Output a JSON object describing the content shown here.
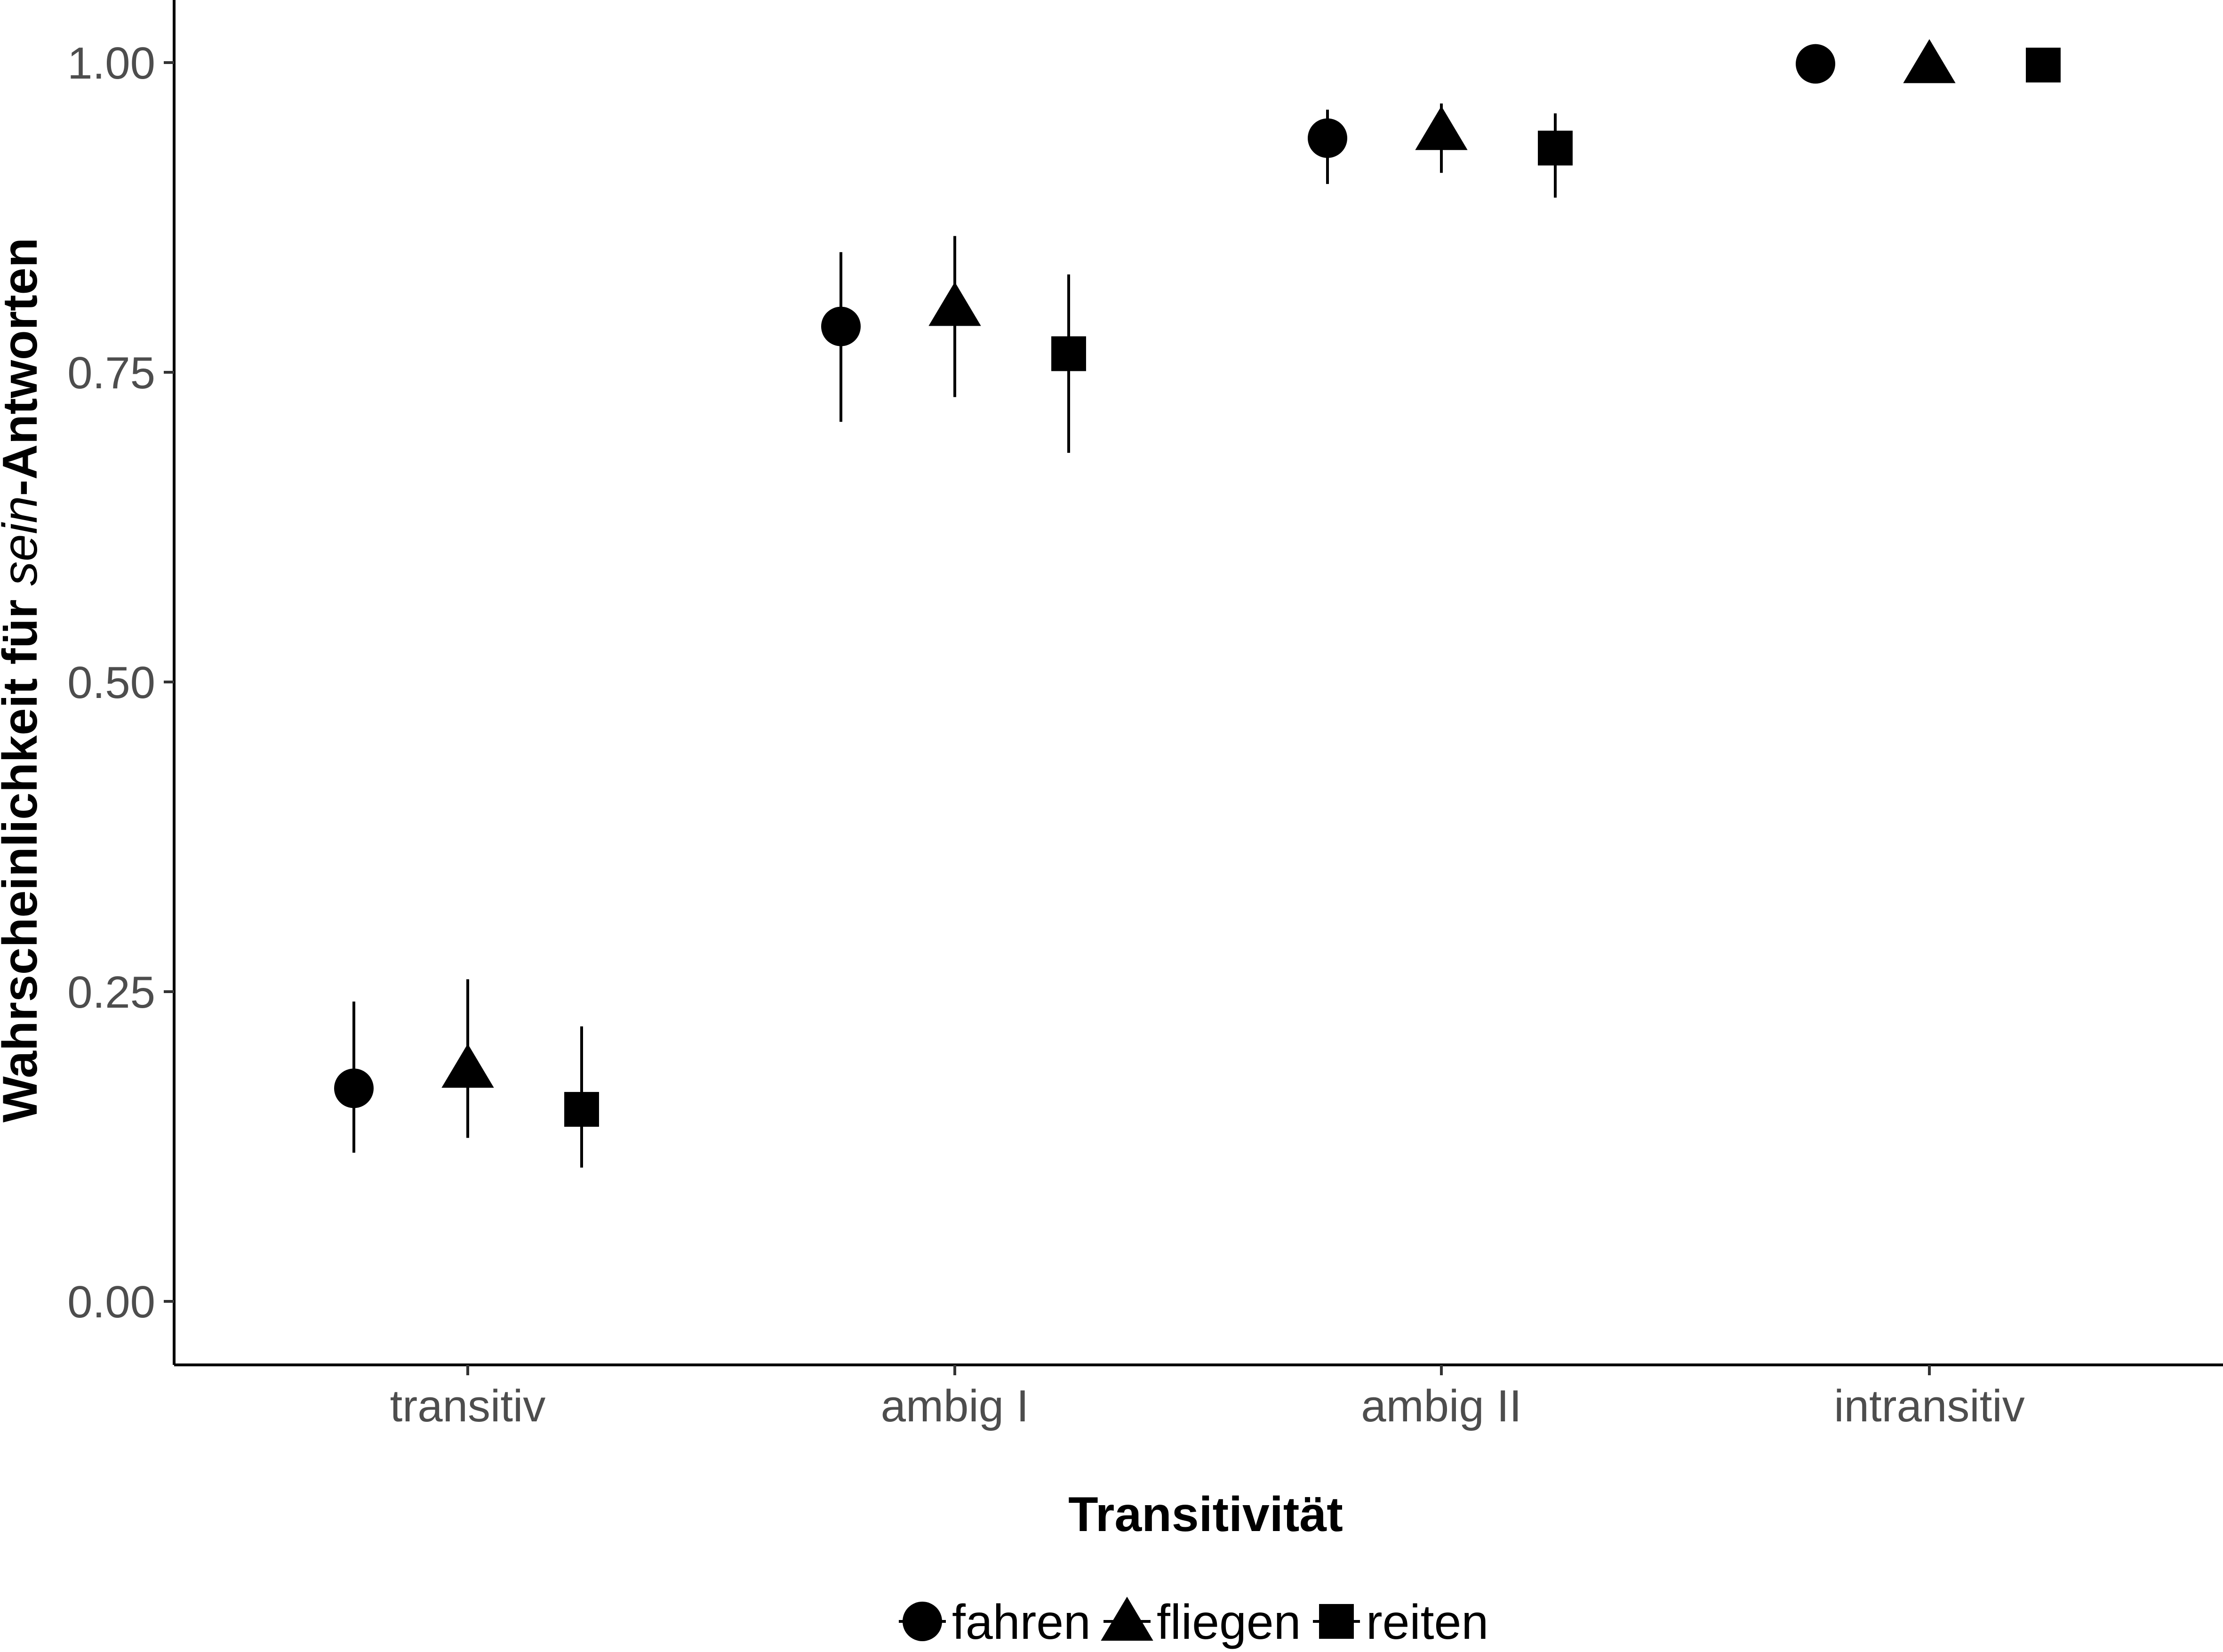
{
  "chart_data": {
    "type": "scatter",
    "xlabel": "Transitivität",
    "ylabel": {
      "prefix": "Wahrscheinlichkeit für ",
      "italic": "sein",
      "suffix": "-Antworten"
    },
    "categories": [
      "transitiv",
      "ambig I",
      "ambig II",
      "intransitiv"
    ],
    "y_ticks": [
      "0.00",
      "0.25",
      "0.50",
      "0.75",
      "1.00"
    ],
    "y_tick_values": [
      0,
      0.25,
      0.5,
      0.75,
      1.0
    ],
    "ylim": [
      -0.05,
      1.05
    ],
    "grid": false,
    "legend_position": "bottom",
    "error_bars": true,
    "series": [
      {
        "name": "fahren",
        "shape": "circle",
        "values": [
          0.172,
          0.787,
          0.939,
          0.999
        ],
        "lower": [
          0.12,
          0.71,
          0.902,
          0.995
        ],
        "upper": [
          0.242,
          0.847,
          0.962,
          1.0
        ]
      },
      {
        "name": "fliegen",
        "shape": "triangle",
        "values": [
          0.188,
          0.803,
          0.945,
          0.999
        ],
        "lower": [
          0.132,
          0.73,
          0.911,
          0.993
        ],
        "upper": [
          0.26,
          0.86,
          0.967,
          1.0
        ]
      },
      {
        "name": "reiten",
        "shape": "square",
        "values": [
          0.155,
          0.765,
          0.931,
          0.998
        ],
        "lower": [
          0.108,
          0.685,
          0.891,
          0.988
        ],
        "upper": [
          0.222,
          0.829,
          0.959,
          1.0
        ]
      }
    ],
    "colors": {
      "marks": "#000000",
      "axis": "#000000",
      "ticks": "#4d4d4d",
      "background": "#ffffff"
    }
  }
}
